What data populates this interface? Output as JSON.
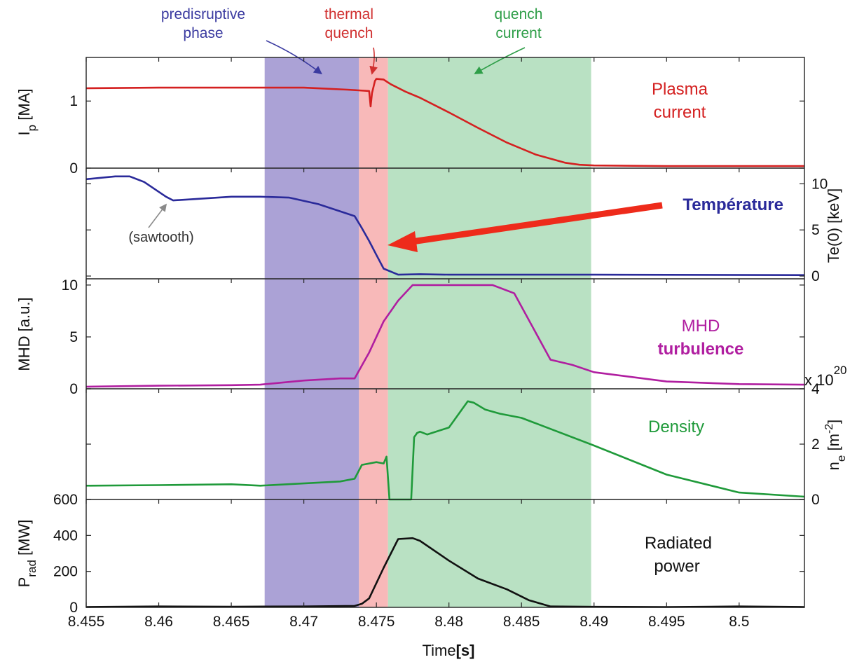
{
  "chart_data": {
    "type": "line",
    "xlabel": "Time",
    "xunit": "[s]",
    "xlim": [
      8.455,
      8.5045
    ],
    "xticks": [
      "8.455",
      "8.46",
      "8.465",
      "8.47",
      "8.475",
      "8.48",
      "8.485",
      "8.49",
      "8.495",
      "8.5"
    ],
    "phases": [
      {
        "name": "predisruptive phase",
        "lines": [
          "predisruptive",
          "phase"
        ],
        "start": 8.4673,
        "end": 8.4738,
        "color": "#aba2d6",
        "text_color": "#3a3aa0",
        "arrow_x": 8.4712
      },
      {
        "name": "thermal quench",
        "lines": [
          "thermal",
          "quench"
        ],
        "start": 8.4738,
        "end": 8.4758,
        "color": "#f8b9b9",
        "text_color": "#d03030",
        "arrow_x": 8.4747
      },
      {
        "name": "quench current",
        "lines": [
          "quench",
          "current"
        ],
        "start": 8.4758,
        "end": 8.4898,
        "color": "#b9e1c3",
        "text_color": "#2e9e48",
        "arrow_x": 8.4818
      }
    ],
    "panels": [
      {
        "id": "plasma-current",
        "ylabel": "I",
        "ylabel_sub": "p",
        "ylabel_unit": "[MA]",
        "ylim": [
          0,
          1.65
        ],
        "left_ticks": [
          {
            "v": 0,
            "label": "0"
          },
          {
            "v": 1,
            "label": "1"
          }
        ],
        "right_ticks": [],
        "color": "#d42020",
        "label_lines": [
          "Plasma",
          "current"
        ],
        "label_bold": false,
        "x": [
          8.455,
          8.46,
          8.465,
          8.47,
          8.473,
          8.4745,
          8.4746,
          8.4747,
          8.4749,
          8.475,
          8.4755,
          8.476,
          8.477,
          8.478,
          8.48,
          8.482,
          8.484,
          8.486,
          8.488,
          8.489,
          8.49,
          8.495,
          8.5,
          8.5045
        ],
        "values": [
          1.19,
          1.2,
          1.2,
          1.2,
          1.17,
          1.15,
          0.92,
          1.12,
          1.3,
          1.33,
          1.32,
          1.25,
          1.14,
          1.05,
          0.83,
          0.6,
          0.38,
          0.2,
          0.08,
          0.05,
          0.04,
          0.03,
          0.03,
          0.03
        ]
      },
      {
        "id": "temperature",
        "ylabel": "Te(0) [keV]",
        "ylim": [
          -0.3,
          11.7
        ],
        "left_ticks": [],
        "right_ticks": [
          {
            "v": 0,
            "label": "0"
          },
          {
            "v": 5,
            "label": "5"
          },
          {
            "v": 10,
            "label": "10"
          }
        ],
        "color": "#2a2a9a",
        "label_lines": [
          "Température"
        ],
        "label_bold": true,
        "annotation": "(sawtooth)",
        "x": [
          8.455,
          8.457,
          8.458,
          8.459,
          8.4605,
          8.461,
          8.462,
          8.465,
          8.467,
          8.469,
          8.471,
          8.4735,
          8.474,
          8.4745,
          8.475,
          8.4755,
          8.4765,
          8.478,
          8.48,
          8.49,
          8.5045
        ],
        "values": [
          10.5,
          10.8,
          10.8,
          10.2,
          8.6,
          8.2,
          8.3,
          8.6,
          8.6,
          8.5,
          7.8,
          6.5,
          5.2,
          3.8,
          2.3,
          0.8,
          0.15,
          0.2,
          0.15,
          0.15,
          0.1
        ]
      },
      {
        "id": "mhd",
        "ylabel": "MHD [a.u.]",
        "ylim": [
          0,
          10.6
        ],
        "left_ticks": [
          {
            "v": 0,
            "label": "0"
          },
          {
            "v": 5,
            "label": "5"
          },
          {
            "v": 10,
            "label": "10"
          }
        ],
        "right_ticks": [],
        "color": "#b01ea0",
        "label_lines": [
          "MHD",
          "turbulence"
        ],
        "label_bold": true,
        "x": [
          8.455,
          8.46,
          8.465,
          8.467,
          8.47,
          8.4725,
          8.4735,
          8.4745,
          8.4755,
          8.4765,
          8.4775,
          8.48,
          8.483,
          8.4845,
          8.487,
          8.4885,
          8.49,
          8.495,
          8.5,
          8.5045
        ],
        "values": [
          0.2,
          0.3,
          0.35,
          0.4,
          0.8,
          1.0,
          1.0,
          3.5,
          6.5,
          8.5,
          10.0,
          10.0,
          10.0,
          9.2,
          2.8,
          2.3,
          1.6,
          0.7,
          0.45,
          0.4
        ]
      },
      {
        "id": "density",
        "ylabel": "n",
        "ylabel_sub": "e",
        "ylabel_unit": "[m",
        "ylabel_sup": "-2",
        "ylabel_end": "]",
        "ylim": [
          0,
          4
        ],
        "left_ticks": [],
        "right_ticks": [
          {
            "v": 0,
            "label": "0"
          },
          {
            "v": 2,
            "label": "2"
          },
          {
            "v": 4,
            "label": "4"
          }
        ],
        "exponent": "x 10",
        "exponent_power": "20",
        "color": "#1f9a3a",
        "label_lines": [
          "Density"
        ],
        "label_bold": false,
        "x": [
          8.455,
          8.46,
          8.465,
          8.467,
          8.4725,
          8.4735,
          8.474,
          8.475,
          8.4755,
          8.4757,
          8.4759,
          8.4761,
          8.4765,
          8.4774,
          8.4776,
          8.4778,
          8.478,
          8.4785,
          8.48,
          8.4813,
          8.4817,
          8.4825,
          8.4835,
          8.485,
          8.49,
          8.495,
          8.5,
          8.5045
        ],
        "values": [
          0.5,
          0.52,
          0.55,
          0.5,
          0.65,
          0.75,
          1.25,
          1.35,
          1.3,
          1.55,
          0.0,
          0.0,
          0.0,
          0.0,
          2.25,
          2.4,
          2.45,
          2.35,
          2.6,
          3.55,
          3.5,
          3.25,
          3.1,
          2.95,
          1.95,
          0.9,
          0.25,
          0.1
        ]
      },
      {
        "id": "radiated-power",
        "ylabel": "P",
        "ylabel_sub": "rad",
        "ylabel_unit": "[MW]",
        "ylim": [
          0,
          600
        ],
        "left_ticks": [
          {
            "v": 0,
            "label": "0"
          },
          {
            "v": 200,
            "label": "200"
          },
          {
            "v": 400,
            "label": "400"
          },
          {
            "v": 600,
            "label": "600"
          }
        ],
        "right_ticks": [],
        "color": "#111111",
        "label_lines": [
          "Radiated",
          "power"
        ],
        "label_bold": false,
        "x": [
          8.455,
          8.46,
          8.465,
          8.47,
          8.4735,
          8.474,
          8.4745,
          8.4755,
          8.4765,
          8.4775,
          8.478,
          8.48,
          8.482,
          8.484,
          8.4855,
          8.487,
          8.49,
          8.495,
          8.5,
          8.5045
        ],
        "values": [
          2,
          5,
          4,
          5,
          8,
          20,
          50,
          220,
          380,
          385,
          370,
          260,
          160,
          100,
          40,
          5,
          3,
          2,
          5,
          2
        ]
      }
    ]
  }
}
